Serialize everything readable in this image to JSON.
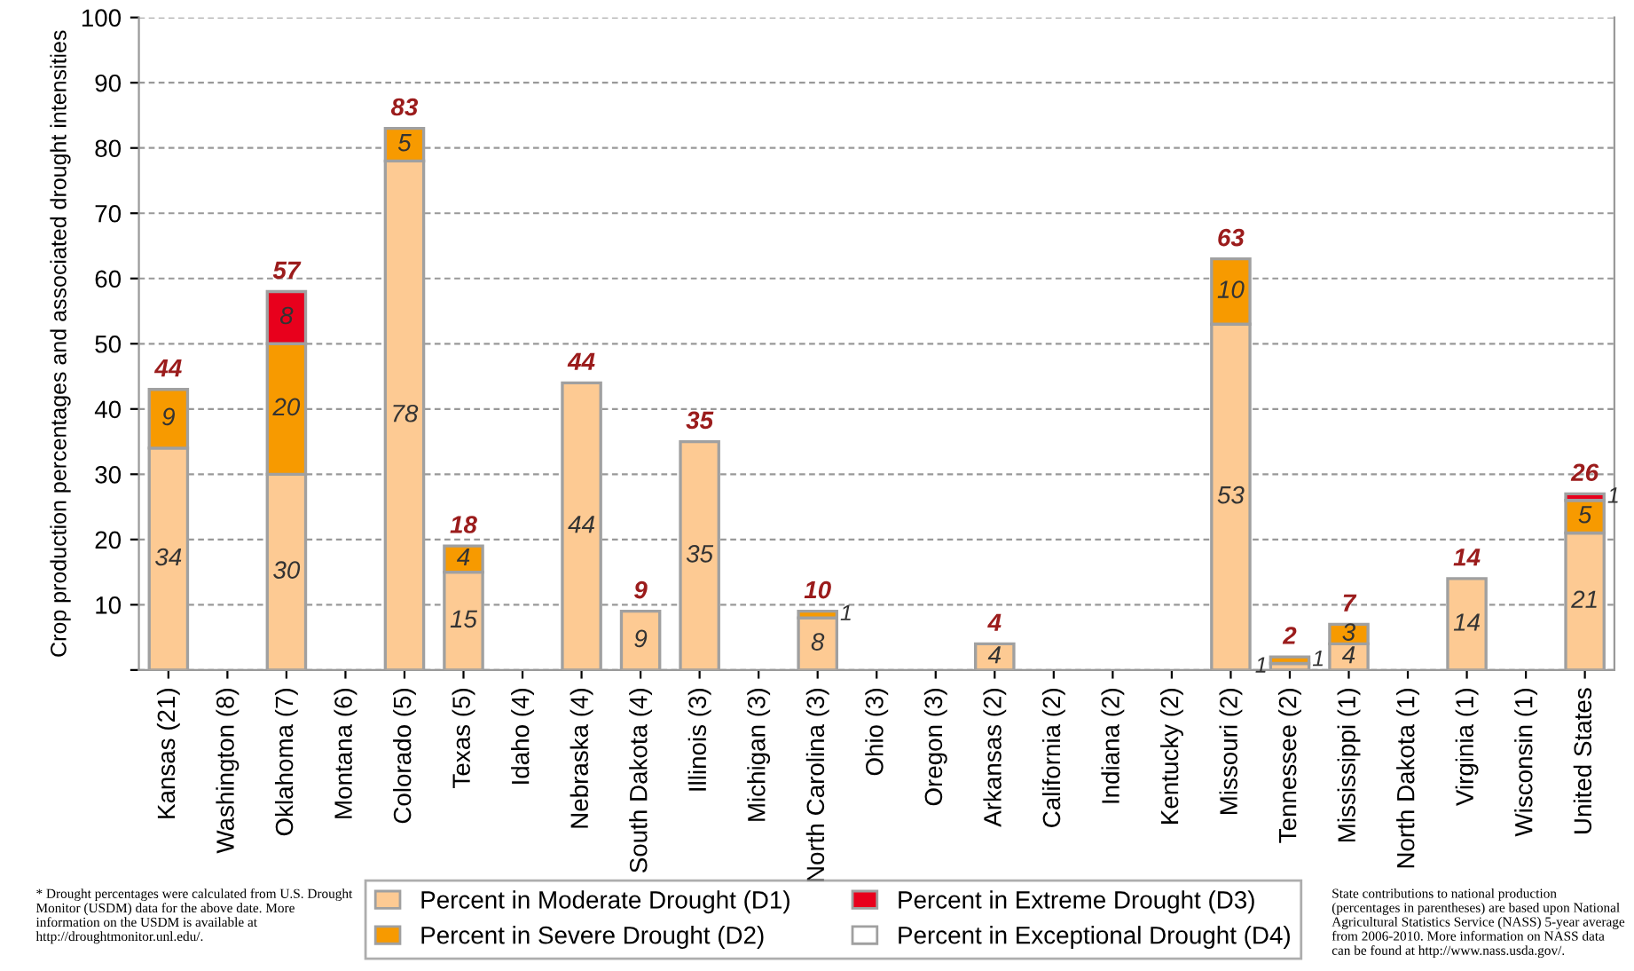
{
  "chart_data": {
    "type": "bar",
    "stacked": true,
    "ylabel": "Crop production percentages and associated drought intensities",
    "categories": [
      "Kansas (21)",
      "Washington (8)",
      "Oklahoma (7)",
      "Montana (6)",
      "Colorado (5)",
      "Texas (5)",
      "Idaho (4)",
      "Nebraska (4)",
      "South Dakota (4)",
      "Illinois (3)",
      "Michigan (3)",
      "North Carolina (3)",
      "Ohio (3)",
      "Oregon (3)",
      "Arkansas (2)",
      "California (2)",
      "Indiana (2)",
      "Kentucky (2)",
      "Missouri (2)",
      "Tennessee (2)",
      "Mississippi (1)",
      "North Dakota (1)",
      "Virginia (1)",
      "Wisconsin (1)",
      "United States"
    ],
    "series": [
      {
        "name": "Percent in Moderate Drought (D1)",
        "color": "#fdca93",
        "values": [
          34,
          null,
          30,
          null,
          78,
          15,
          null,
          44,
          9,
          35,
          null,
          8,
          null,
          null,
          4,
          null,
          null,
          null,
          53,
          1,
          4,
          null,
          14,
          null,
          21
        ]
      },
      {
        "name": "Percent in Severe Drought (D2)",
        "color": "#f79a00",
        "values": [
          9,
          null,
          20,
          null,
          5,
          4,
          null,
          null,
          null,
          null,
          null,
          1,
          null,
          null,
          null,
          null,
          null,
          null,
          10,
          1,
          3,
          null,
          null,
          null,
          5
        ]
      },
      {
        "name": "Percent in Extreme Drought (D3)",
        "color": "#e8001c",
        "values": [
          null,
          null,
          8,
          null,
          null,
          null,
          null,
          null,
          null,
          null,
          null,
          null,
          null,
          null,
          null,
          null,
          null,
          null,
          null,
          null,
          null,
          null,
          null,
          null,
          1
        ]
      },
      {
        "name": "Percent in Exceptional Drought (D4)",
        "color": "#ffffff",
        "values": [
          null,
          null,
          null,
          null,
          null,
          null,
          null,
          null,
          null,
          null,
          null,
          null,
          null,
          null,
          null,
          null,
          null,
          null,
          null,
          null,
          null,
          null,
          null,
          null,
          null
        ]
      }
    ],
    "data_labels": true,
    "totals": [
      "44",
      null,
      "57",
      null,
      "83",
      "18",
      null,
      "44",
      "9",
      "35",
      null,
      "10",
      null,
      null,
      "4",
      null,
      null,
      null,
      "63",
      "2",
      "7",
      null,
      "14",
      null,
      "26"
    ],
    "ylim": [
      0,
      100
    ],
    "yticks": [
      {
        "value": 0,
        "label": null
      },
      10,
      20,
      30,
      40,
      50,
      60,
      70,
      80,
      90,
      100
    ],
    "grid": "y",
    "legend": "bottom",
    "annotations": [
      "* Drought percentages were calculated from U.S. Drought Monitor (USDM) data for the above date. More information on the USDM is available at http://droughtmonitor.unl.edu/.",
      "State contributions to national production (percentages in parentheses) are based upon National Agricultural Statistics Service (NASS) 5-year average from 2006-2010. More information on NASS data can be found at http://www.nass.usda.gov/."
    ]
  }
}
